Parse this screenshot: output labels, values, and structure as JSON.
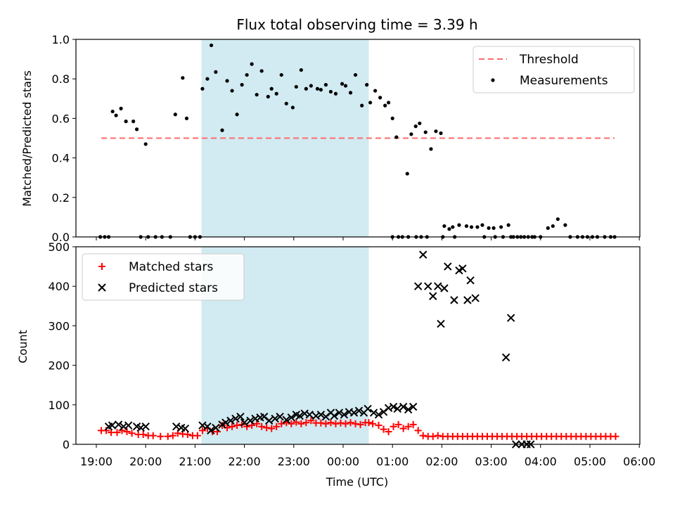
{
  "chart_data": {
    "title": "Flux total observing time = 3.39 h",
    "xlabel": "Time (UTC)",
    "x_ticks": [
      "19:00",
      "20:00",
      "21:00",
      "22:00",
      "23:00",
      "00:00",
      "01:00",
      "02:00",
      "03:00",
      "04:00",
      "05:00",
      "06:00"
    ],
    "shaded_interval_hours": [
      21.13,
      24.52
    ],
    "shaded_color": "#add8e6",
    "panels": [
      {
        "type": "scatter",
        "ylabel": "Matched/Predicted stars",
        "ylim": [
          0,
          1.0
        ],
        "y_ticks": [
          "0.0",
          "0.2",
          "0.4",
          "0.6",
          "0.8",
          "1.0"
        ],
        "legend": {
          "placement": "top-right",
          "entries": [
            "Threshold",
            "Measurements"
          ]
        },
        "threshold": {
          "name": "Threshold",
          "value": 0.5,
          "x_range": [
            19.1,
            29.5
          ],
          "color": "#ff6b6b"
        },
        "series": [
          {
            "name": "Measurements",
            "color": "#000000",
            "marker": "dot",
            "x": [
              19.08,
              19.17,
              19.25,
              19.33,
              19.4,
              19.5,
              19.6,
              19.75,
              19.82,
              19.9,
              20.0,
              20.05,
              20.2,
              20.33,
              20.5,
              20.6,
              20.75,
              20.83,
              20.9,
              21.0,
              21.1,
              21.15,
              21.25,
              21.33,
              21.42,
              21.55,
              21.65,
              21.75,
              21.85,
              21.95,
              22.05,
              22.15,
              22.25,
              22.35,
              22.48,
              22.55,
              22.65,
              22.75,
              22.85,
              22.98,
              23.05,
              23.15,
              23.25,
              23.35,
              23.48,
              23.55,
              23.65,
              23.75,
              23.85,
              23.98,
              24.05,
              24.15,
              24.25,
              24.38,
              24.48,
              24.55,
              24.65,
              24.75,
              24.85,
              24.92,
              25.0,
              25.08,
              25.2,
              25.3,
              25.38,
              25.47,
              25.55,
              25.67,
              25.78,
              25.88,
              25.98,
              26.05,
              26.15,
              26.22,
              26.35,
              26.5,
              26.6,
              26.72,
              26.82,
              26.95,
              27.05,
              27.2,
              27.35,
              27.45,
              27.6,
              27.75,
              27.88,
              28.0,
              28.15,
              28.25,
              28.35,
              28.5,
              28.6,
              28.75,
              28.85,
              28.95,
              29.05,
              29.15,
              29.3,
              29.42,
              29.5,
              25.0,
              25.12,
              25.32,
              25.48,
              25.58,
              25.7,
              26.02,
              26.26,
              26.86,
              27.08,
              27.24,
              27.4,
              27.53,
              27.67,
              27.83
            ],
            "y": [
              0.0,
              0.0,
              0.0,
              0.635,
              0.615,
              0.65,
              0.585,
              0.585,
              0.545,
              0.0,
              0.47,
              0.0,
              0.0,
              0.0,
              0.0,
              0.62,
              0.805,
              0.6,
              0.0,
              0.0,
              0.0,
              0.75,
              0.8,
              0.97,
              0.835,
              0.54,
              0.79,
              0.74,
              0.62,
              0.77,
              0.82,
              0.875,
              0.72,
              0.84,
              0.71,
              0.75,
              0.725,
              0.82,
              0.675,
              0.655,
              0.76,
              0.845,
              0.75,
              0.765,
              0.75,
              0.745,
              0.77,
              0.735,
              0.725,
              0.775,
              0.765,
              0.73,
              0.82,
              0.665,
              0.77,
              0.68,
              0.74,
              0.705,
              0.665,
              0.68,
              0.6,
              0.505,
              0.0,
              0.32,
              0.52,
              0.56,
              0.575,
              0.53,
              0.445,
              0.535,
              0.525,
              0.055,
              0.04,
              0.05,
              0.06,
              0.055,
              0.05,
              0.05,
              0.06,
              0.045,
              0.045,
              0.05,
              0.06,
              0.0,
              0.0,
              0.0,
              0.0,
              0.0,
              0.045,
              0.055,
              0.09,
              0.06,
              0.0,
              0.0,
              0.0,
              0.0,
              0.0,
              0.0,
              0.0,
              0.0,
              0.0,
              0.0,
              0.0,
              0.0,
              0.0,
              0.0,
              0.0,
              0.0,
              0.0,
              0.0,
              0.0,
              0.0,
              0.0,
              0.0,
              0.0,
              0.0
            ]
          }
        ]
      },
      {
        "type": "scatter",
        "ylabel": "Count",
        "ylim": [
          0,
          500
        ],
        "y_ticks": [
          "0",
          "100",
          "200",
          "300",
          "400",
          "500"
        ],
        "legend": {
          "placement": "top-left",
          "entries": [
            "Matched stars",
            "Predicted stars"
          ]
        },
        "series": [
          {
            "name": "Matched stars",
            "color": "#ff0000",
            "marker": "plus",
            "x": [
              19.1,
              19.2,
              19.3,
              19.42,
              19.52,
              19.62,
              19.72,
              19.85,
              19.95,
              20.05,
              20.15,
              20.3,
              20.45,
              20.55,
              20.65,
              20.75,
              20.85,
              20.95,
              21.05,
              21.15,
              21.25,
              21.35,
              21.45,
              21.55,
              21.65,
              21.75,
              21.85,
              21.95,
              22.05,
              22.15,
              22.25,
              22.35,
              22.45,
              22.55,
              22.65,
              22.75,
              22.85,
              22.95,
              23.05,
              23.15,
              23.25,
              23.35,
              23.45,
              23.55,
              23.65,
              23.75,
              23.85,
              23.95,
              24.05,
              24.15,
              24.25,
              24.35,
              24.45,
              24.52,
              24.6,
              24.72,
              24.82,
              24.92,
              25.02,
              25.12,
              25.22,
              25.32,
              25.42,
              25.52,
              25.62,
              25.72,
              25.82,
              25.92,
              26.02,
              26.12,
              26.22,
              26.32,
              26.42,
              26.52,
              26.62,
              26.72,
              26.82,
              26.92,
              27.02,
              27.12,
              27.22,
              27.32,
              27.42,
              27.52,
              27.62,
              27.72,
              27.82,
              27.92,
              28.02,
              28.12,
              28.22,
              28.32,
              28.42,
              28.52,
              28.62,
              28.72,
              28.82,
              28.92,
              29.02,
              29.12,
              29.22,
              29.32,
              29.42,
              29.52
            ],
            "y": [
              35,
              35,
              30,
              30,
              35,
              32,
              28,
              25,
              25,
              22,
              22,
              20,
              20,
              22,
              28,
              26,
              25,
              22,
              22,
              35,
              40,
              32,
              32,
              48,
              42,
              45,
              48,
              50,
              45,
              48,
              52,
              45,
              42,
              40,
              45,
              52,
              55,
              52,
              56,
              52,
              55,
              60,
              54,
              54,
              52,
              55,
              52,
              54,
              52,
              55,
              52,
              50,
              55,
              55,
              52,
              48,
              38,
              32,
              45,
              50,
              40,
              45,
              50,
              35,
              22,
              20,
              20,
              22,
              20,
              20,
              20,
              20,
              20,
              20,
              20,
              20,
              20,
              20,
              20,
              20,
              20,
              20,
              20,
              20,
              20,
              20,
              20,
              20,
              20,
              20,
              20,
              20,
              20,
              20,
              20,
              20,
              20,
              20,
              20,
              20,
              20,
              20,
              20,
              20
            ]
          },
          {
            "name": "Predicted stars",
            "color": "#000000",
            "marker": "x",
            "x": [
              19.25,
              19.32,
              19.45,
              19.55,
              19.65,
              19.82,
              19.9,
              20.0,
              20.62,
              20.72,
              20.8,
              21.15,
              21.25,
              21.32,
              21.42,
              21.55,
              21.62,
              21.72,
              21.82,
              21.92,
              22.0,
              22.12,
              22.22,
              22.32,
              22.4,
              22.5,
              22.62,
              22.72,
              22.85,
              22.95,
              23.05,
              23.12,
              23.22,
              23.32,
              23.45,
              23.55,
              23.65,
              23.75,
              23.82,
              23.92,
              24.02,
              24.12,
              24.22,
              24.32,
              24.42,
              24.5,
              24.62,
              24.72,
              24.82,
              24.92,
              25.02,
              25.1,
              25.22,
              25.32,
              25.42,
              25.52,
              25.62,
              25.72,
              25.82,
              25.92,
              25.98,
              26.05,
              26.12,
              26.25,
              26.35,
              26.42,
              26.52,
              26.58,
              26.68,
              27.3,
              27.4,
              27.5,
              27.62,
              27.72,
              27.8
            ],
            "y": [
              45,
              48,
              50,
              45,
              48,
              45,
              42,
              45,
              45,
              42,
              40,
              48,
              45,
              35,
              42,
              50,
              55,
              60,
              65,
              70,
              55,
              60,
              65,
              68,
              70,
              60,
              65,
              70,
              62,
              68,
              75,
              72,
              78,
              75,
              72,
              75,
              70,
              80,
              72,
              80,
              75,
              82,
              80,
              85,
              80,
              90,
              80,
              75,
              82,
              92,
              95,
              90,
              95,
              88,
              95,
              400,
              480,
              400,
              375,
              400,
              305,
              395,
              450,
              365,
              440,
              445,
              365,
              415,
              370,
              220,
              320,
              0,
              0,
              0,
              0
            ]
          }
        ]
      }
    ]
  }
}
